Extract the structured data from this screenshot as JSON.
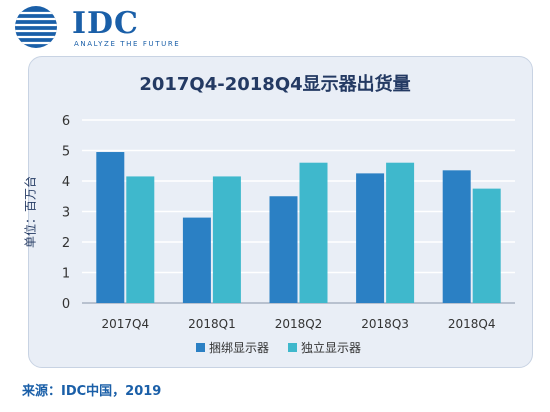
{
  "logo": {
    "name": "IDC",
    "tagline": "ANALYZE THE FUTURE"
  },
  "colors": {
    "bundled": "#2b80c4",
    "standalone": "#3fb8cc",
    "panel": "#e9eef6",
    "title": "#243a63"
  },
  "source": "来源：IDC中国，2019",
  "chart_data": {
    "type": "bar",
    "title": "2017Q4-2018Q4显示器出货量",
    "ylabel": "单位：百万台",
    "xlabel": "",
    "categories": [
      "2017Q4",
      "2018Q1",
      "2018Q2",
      "2018Q3",
      "2018Q4"
    ],
    "series": [
      {
        "name": "捆绑显示器",
        "values": [
          4.95,
          2.8,
          3.5,
          4.25,
          4.35
        ]
      },
      {
        "name": "独立显示器",
        "values": [
          4.15,
          4.15,
          4.6,
          4.6,
          3.75
        ]
      }
    ],
    "ylim": [
      0,
      6
    ],
    "yticks": [
      "0",
      "1",
      "2",
      "3",
      "4",
      "5",
      "6"
    ],
    "grid": true,
    "legend": "bottom-center"
  }
}
